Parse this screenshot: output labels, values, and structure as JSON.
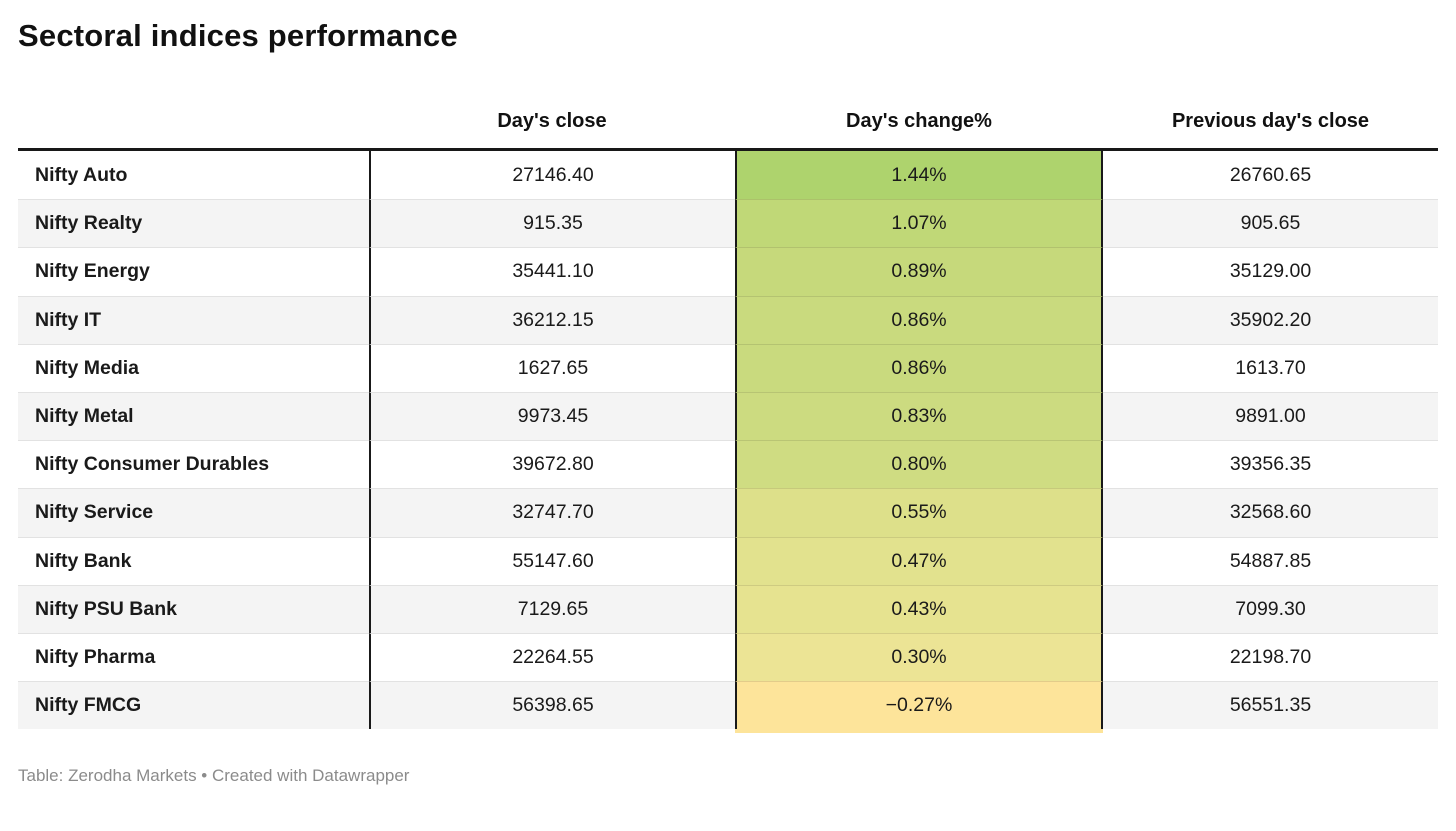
{
  "title": "Sectoral indices performance",
  "footer": "Table: Zerodha Markets • Created with Datawrapper",
  "colors": {
    "header_border": "#181818",
    "row_alt_background": "#f4f4f4",
    "row_separator": "#e2e2e2",
    "footer_text": "#8b8b8b",
    "heatmap_max_green": "#aed36d",
    "heatmap_min_yellow": "#fde49a"
  },
  "chart_data": {
    "type": "table",
    "title": "Sectoral indices performance",
    "columns": [
      "",
      "Day's close",
      "Day's change%",
      "Previous day's close"
    ],
    "heatmap_column": "Day's change%",
    "rows": [
      {
        "label": "Nifty Auto",
        "close": "27146.40",
        "change": "1.44%",
        "change_value": 1.44,
        "prev": "26760.65",
        "color": "#aed36d"
      },
      {
        "label": "Nifty Realty",
        "close": "915.35",
        "change": "1.07%",
        "change_value": 1.07,
        "prev": "905.65",
        "color": "#c0d877"
      },
      {
        "label": "Nifty Energy",
        "close": "35441.10",
        "change": "0.89%",
        "change_value": 0.89,
        "prev": "35129.00",
        "color": "#c6d97b"
      },
      {
        "label": "Nifty IT",
        "close": "36212.15",
        "change": "0.86%",
        "change_value": 0.86,
        "prev": "35902.20",
        "color": "#c9da7e"
      },
      {
        "label": "Nifty Media",
        "close": "1627.65",
        "change": "0.86%",
        "change_value": 0.86,
        "prev": "1613.70",
        "color": "#c9da7e"
      },
      {
        "label": "Nifty Metal",
        "close": "9973.45",
        "change": "0.83%",
        "change_value": 0.83,
        "prev": "9891.00",
        "color": "#ccdb80"
      },
      {
        "label": "Nifty Consumer Durables",
        "close": "39672.80",
        "change": "0.80%",
        "change_value": 0.8,
        "prev": "39356.35",
        "color": "#cfdc82"
      },
      {
        "label": "Nifty Service",
        "close": "32747.70",
        "change": "0.55%",
        "change_value": 0.55,
        "prev": "32568.60",
        "color": "#dde08a"
      },
      {
        "label": "Nifty Bank",
        "close": "55147.60",
        "change": "0.47%",
        "change_value": 0.47,
        "prev": "54887.85",
        "color": "#e2e28e"
      },
      {
        "label": "Nifty PSU Bank",
        "close": "7129.65",
        "change": "0.43%",
        "change_value": 0.43,
        "prev": "7099.30",
        "color": "#e6e390"
      },
      {
        "label": "Nifty Pharma",
        "close": "22264.55",
        "change": "0.30%",
        "change_value": 0.3,
        "prev": "22198.70",
        "color": "#ece495"
      },
      {
        "label": "Nifty FMCG",
        "close": "56398.65",
        "change": "−0.27%",
        "change_value": -0.27,
        "prev": "56551.35",
        "color": "#fde49a"
      }
    ],
    "source": "Table: Zerodha Markets • Created with Datawrapper"
  }
}
